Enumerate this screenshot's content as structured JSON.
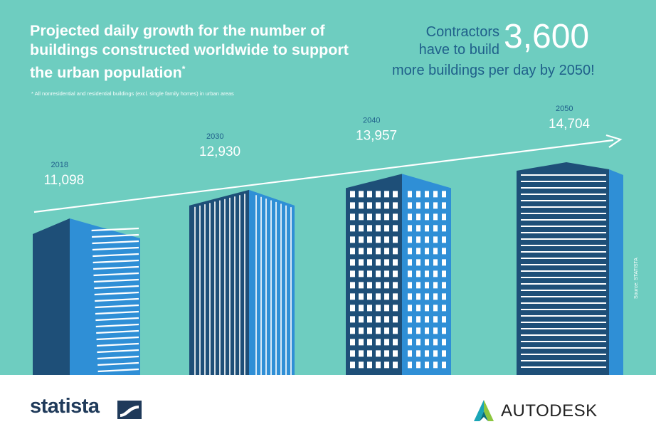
{
  "header": {
    "title": "Projected daily growth for the number of buildings constructed worldwide to support the urban population",
    "title_mark": "*",
    "footnote": "* All nonresidential and residential buildings (excl. single family homes) in urban areas"
  },
  "callout": {
    "line1": "Contractors have to build",
    "number": "3,600",
    "line2": "more buildings per day by 2050!"
  },
  "source": "Source: STATISTA",
  "chart_data": {
    "type": "bar",
    "categories": [
      "2018",
      "2030",
      "2040",
      "2050"
    ],
    "values": [
      11098,
      12930,
      13957,
      14704
    ],
    "value_labels": [
      "11,098",
      "12,930",
      "13,957",
      "14,704"
    ],
    "title": "Projected daily growth for the number of buildings constructed worldwide to support the urban population",
    "xlabel": "",
    "ylabel": "",
    "ylim": [
      0,
      16000
    ],
    "legend": "none",
    "grid": false
  },
  "footer": {
    "brand_left": "statista",
    "brand_right": "AUTODESK"
  },
  "colors": {
    "background": "#6ecdc0",
    "dark_blue": "#1e4f78",
    "light_blue": "#2f8fd6",
    "text_blue": "#1f5f8a"
  }
}
